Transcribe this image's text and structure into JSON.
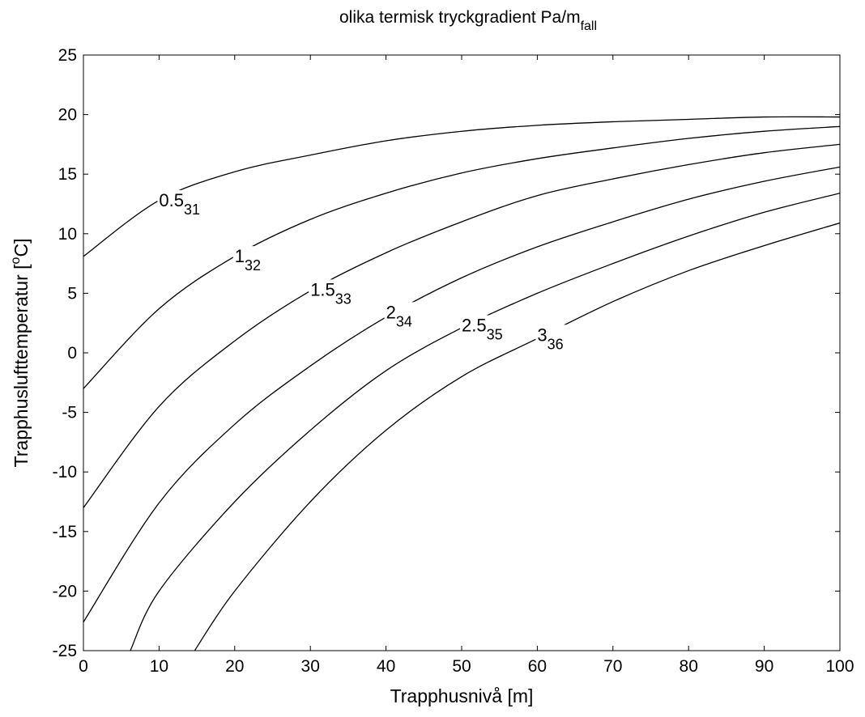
{
  "chart_data": {
    "type": "line",
    "title": "olika termisk tryckgradient  Pa/m",
    "title_subscript": "fall",
    "xlabel": "Trapphusnivå  [m]",
    "ylabel_main": "Trapphuslufttemperatur  [",
    "ylabel_sup": "o",
    "ylabel_tail": "C]",
    "xlim": [
      0,
      100
    ],
    "ylim": [
      -25,
      25
    ],
    "xticks": [
      0,
      10,
      20,
      30,
      40,
      50,
      60,
      70,
      80,
      90,
      100
    ],
    "yticks": [
      -25,
      -20,
      -15,
      -10,
      -5,
      0,
      5,
      10,
      15,
      20,
      25
    ],
    "grid": false,
    "legend": "none",
    "series": [
      {
        "label": "0.5",
        "label_sub": "31",
        "label_at": [
          10,
          12.3
        ],
        "x": [
          0,
          10,
          20,
          30,
          40,
          50,
          60,
          70,
          80,
          90,
          100
        ],
        "y": [
          8.1,
          12.8,
          15.2,
          16.6,
          17.8,
          18.6,
          19.1,
          19.4,
          19.6,
          19.8,
          19.8
        ]
      },
      {
        "label": "1",
        "label_sub": "32",
        "label_at": [
          20,
          7.6
        ],
        "x": [
          0,
          10,
          20,
          30,
          40,
          50,
          60,
          70,
          80,
          90,
          100
        ],
        "y": [
          -3.0,
          3.7,
          8.1,
          11.2,
          13.4,
          15.1,
          16.3,
          17.2,
          18.0,
          18.6,
          19.0
        ]
      },
      {
        "label": "1.5",
        "label_sub": "33",
        "label_at": [
          30,
          4.8
        ],
        "x": [
          0,
          10,
          20,
          30,
          40,
          50,
          60,
          70,
          80,
          90,
          100
        ],
        "y": [
          -13.0,
          -4.5,
          1.0,
          5.2,
          8.4,
          11.0,
          13.2,
          14.6,
          15.8,
          16.8,
          17.5
        ]
      },
      {
        "label": "2",
        "label_sub": "34",
        "label_at": [
          40,
          2.9
        ],
        "x": [
          0,
          10,
          20,
          30,
          40,
          50,
          60,
          70,
          80,
          90,
          100
        ],
        "y": [
          -22.6,
          -12.6,
          -6.0,
          -1.1,
          3.0,
          6.3,
          8.9,
          11.0,
          12.9,
          14.4,
          15.6
        ]
      },
      {
        "label": "2.5",
        "label_sub": "35",
        "label_at": [
          50,
          1.8
        ],
        "x": [
          6.2,
          10,
          20,
          30,
          40,
          50,
          60,
          70,
          80,
          90,
          100
        ],
        "y": [
          -25.0,
          -20.0,
          -12.5,
          -6.5,
          -1.5,
          2.1,
          5.0,
          7.5,
          9.8,
          11.8,
          13.4
        ]
      },
      {
        "label": "3",
        "label_sub": "36",
        "label_at": [
          60,
          1.0
        ],
        "x": [
          14.7,
          20,
          30,
          40,
          50,
          60,
          70,
          80,
          90,
          100
        ],
        "y": [
          -25.0,
          -20.0,
          -12.5,
          -6.5,
          -2.0,
          1.2,
          4.3,
          6.9,
          9.0,
          10.9
        ]
      }
    ]
  }
}
